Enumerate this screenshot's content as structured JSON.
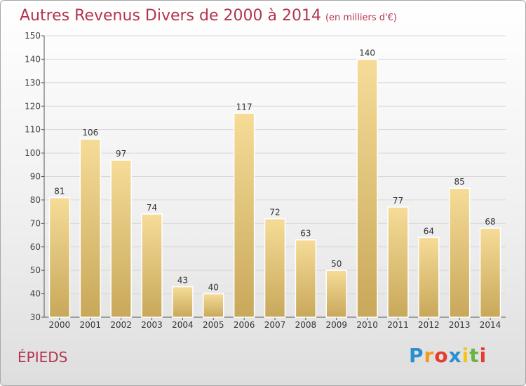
{
  "title": "Autres Revenus Divers de 2000 à 2014",
  "title_unit": "(en milliers d'€)",
  "city": "ÉPIEDS",
  "logo": {
    "text": "Proxiti",
    "letters": [
      "P",
      "r",
      "o",
      "x",
      "i",
      "t",
      "i"
    ],
    "colors": [
      "#2a8fd0",
      "#f29a1d",
      "#e83b2f",
      "#2a8fd0",
      "#f2c61d",
      "#6db33f",
      "#e83b2f"
    ]
  },
  "colors": {
    "title": "#b4344f",
    "bar_top": "#f6dc98",
    "bar_bottom": "#c8a85a",
    "grid": "#d8d8d8"
  },
  "chart_data": {
    "type": "bar",
    "categories": [
      "2000",
      "2001",
      "2002",
      "2003",
      "2004",
      "2005",
      "2006",
      "2007",
      "2008",
      "2009",
      "2010",
      "2011",
      "2012",
      "2013",
      "2014"
    ],
    "values": [
      81,
      106,
      97,
      74,
      43,
      40,
      117,
      72,
      63,
      50,
      140,
      77,
      64,
      85,
      68
    ],
    "ylim": [
      30,
      150
    ],
    "yticks": [
      30,
      40,
      50,
      60,
      70,
      80,
      90,
      100,
      110,
      120,
      130,
      140,
      150
    ],
    "grid": true,
    "xlabel": "",
    "ylabel": ""
  }
}
